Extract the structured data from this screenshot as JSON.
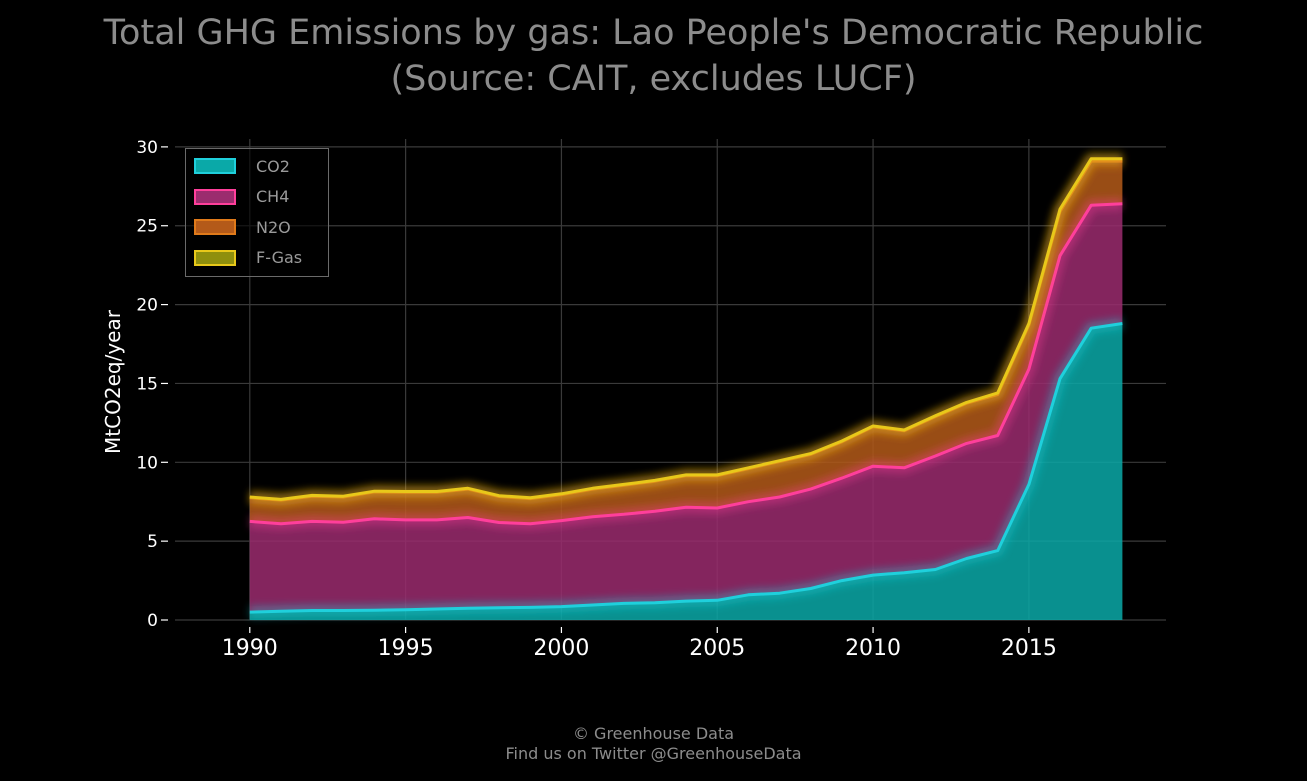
{
  "title_line1": "Total GHG Emissions by gas: Lao People's Democratic Republic",
  "title_line2": "(Source: CAIT, excludes LUCF)",
  "credit_line1": "© Greenhouse Data",
  "credit_line2": "Find us on Twitter @GreenhouseData",
  "chart_data": {
    "type": "area",
    "stacked": true,
    "ylabel": "MtCO2eq/year",
    "xlabel": "",
    "xlim": [
      1987.6,
      2019.4
    ],
    "ylim": [
      0,
      30.5
    ],
    "xticks": [
      1990,
      1995,
      2000,
      2005,
      2010,
      2015
    ],
    "yticks": [
      0,
      5,
      10,
      15,
      20,
      25,
      30
    ],
    "grid": true,
    "legend_position": "top-left",
    "x": [
      1990,
      1991,
      1992,
      1993,
      1994,
      1995,
      1996,
      1997,
      1998,
      1999,
      2000,
      2001,
      2002,
      2003,
      2004,
      2005,
      2006,
      2007,
      2008,
      2009,
      2010,
      2011,
      2012,
      2013,
      2014,
      2015,
      2016,
      2017,
      2018
    ],
    "series": [
      {
        "name": "CO2",
        "fill": "#0aa9a8",
        "line": "#1fd0dc",
        "values": [
          0.5,
          0.55,
          0.6,
          0.6,
          0.62,
          0.65,
          0.7,
          0.75,
          0.78,
          0.8,
          0.85,
          0.95,
          1.05,
          1.1,
          1.2,
          1.25,
          1.6,
          1.7,
          2.0,
          2.5,
          2.85,
          3.0,
          3.2,
          3.9,
          4.4,
          8.6,
          15.3,
          18.5,
          18.8
        ]
      },
      {
        "name": "CH4",
        "fill": "#9b2c6e",
        "line": "#ff3f9b",
        "values": [
          5.75,
          5.55,
          5.65,
          5.6,
          5.8,
          5.7,
          5.65,
          5.75,
          5.4,
          5.3,
          5.45,
          5.6,
          5.65,
          5.8,
          5.95,
          5.85,
          5.9,
          6.1,
          6.3,
          6.5,
          6.9,
          6.65,
          7.2,
          7.3,
          7.3,
          7.3,
          7.8,
          7.8,
          7.6
        ]
      },
      {
        "name": "N2O",
        "fill": "#b45a19",
        "line": "#e07a1a",
        "values": [
          1.5,
          1.5,
          1.6,
          1.6,
          1.7,
          1.75,
          1.75,
          1.8,
          1.65,
          1.6,
          1.65,
          1.75,
          1.85,
          1.9,
          2.0,
          2.05,
          2.1,
          2.25,
          2.2,
          2.3,
          2.5,
          2.35,
          2.5,
          2.55,
          2.6,
          2.8,
          2.8,
          2.8,
          2.7
        ]
      },
      {
        "name": "F-Gas",
        "fill": "#8f8f0d",
        "line": "#e8c81a",
        "values": [
          0.05,
          0.05,
          0.05,
          0.05,
          0.05,
          0.05,
          0.05,
          0.05,
          0.05,
          0.05,
          0.05,
          0.05,
          0.05,
          0.05,
          0.05,
          0.05,
          0.05,
          0.05,
          0.05,
          0.05,
          0.05,
          0.05,
          0.05,
          0.05,
          0.1,
          0.1,
          0.15,
          0.15,
          0.15
        ]
      }
    ]
  }
}
